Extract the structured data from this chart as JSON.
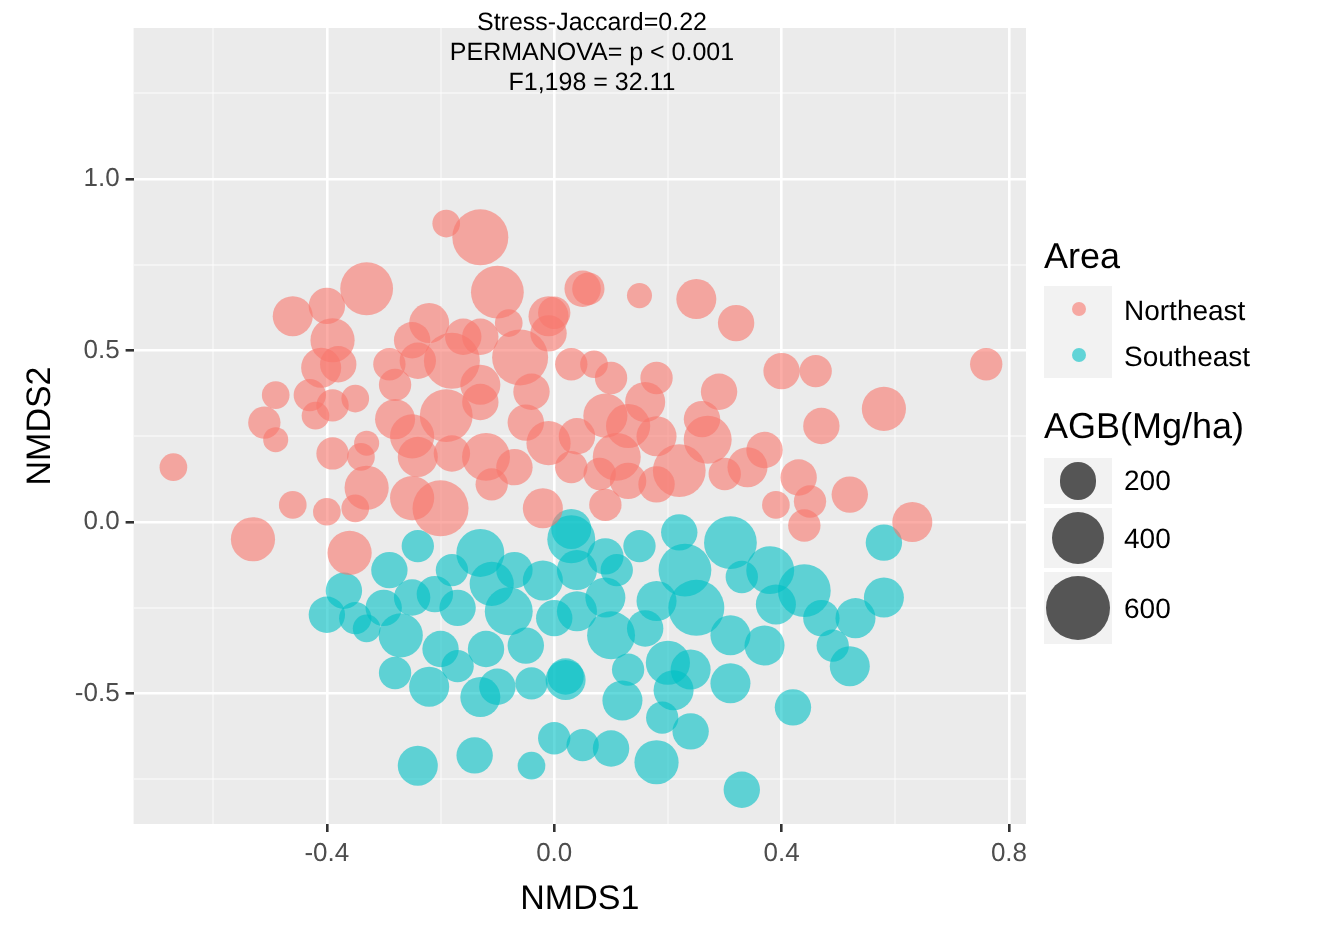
{
  "chart_data": {
    "type": "bubble",
    "xlabel": "NMDS1",
    "ylabel": "NMDS2",
    "legend_title": "Area",
    "legend": "right",
    "grid": true,
    "annotations": [
      "Stress-Jaccard=0.22",
      "PERMANOVA= p < 0.001",
      "F1,198 = 32.11",
      "AGB(Mg/ha)"
    ],
    "size_legend": [
      200,
      400,
      600
    ],
    "xlim": [
      -0.74,
      0.83
    ],
    "ylim": [
      -0.88,
      1.44
    ],
    "xticks": [
      {
        "value": -0.6,
        "label": null
      },
      -0.4,
      {
        "value": -0.2,
        "label": null
      },
      {
        "value": 0,
        "label": "0.0"
      },
      {
        "value": 0.2,
        "label": null
      },
      0.4,
      {
        "value": 0.6,
        "label": null
      },
      0.8
    ],
    "yticks": [
      {
        "value": -0.75,
        "label": null
      },
      -0.5,
      {
        "value": -0.25,
        "label": null
      },
      {
        "value": 0,
        "label": "0.0"
      },
      {
        "value": 0.25,
        "label": null
      },
      0.5,
      {
        "value": 0.75,
        "label": null
      },
      {
        "value": 1,
        "label": "1.0"
      },
      {
        "value": 1.25,
        "label": null
      }
    ],
    "series": [
      {
        "name": "Northeast",
        "color": "#f8766d",
        "x": [
          -0.67,
          -0.19,
          -0.13,
          -0.33,
          -0.46,
          -0.4,
          -0.39,
          -0.1,
          -0.01,
          0.06,
          -0.49,
          -0.51,
          -0.49,
          -0.43,
          -0.42,
          -0.41,
          -0.38,
          -0.39,
          -0.35,
          -0.39,
          -0.34,
          -0.33,
          -0.33,
          -0.46,
          -0.4,
          -0.35,
          -0.29,
          -0.28,
          -0.25,
          -0.22,
          -0.24,
          -0.18,
          -0.16,
          -0.13,
          -0.08,
          -0.06,
          -0.01,
          0.03,
          -0.13,
          -0.13,
          -0.04,
          -0.28,
          -0.25,
          -0.19,
          -0.18,
          -0.24,
          -0.25,
          -0.2,
          -0.12,
          -0.11,
          -0.07,
          -0.05,
          -0.01,
          -0.02,
          0.03,
          0.04,
          0.05,
          0.15,
          0.25,
          0.32,
          0.0,
          0.07,
          0.1,
          0.18,
          0.29,
          0.4,
          0.46,
          0.76,
          0.58,
          0.47,
          0.09,
          0.16,
          0.13,
          0.18,
          0.26,
          0.27,
          0.11,
          0.22,
          0.08,
          0.13,
          0.18,
          0.3,
          0.34,
          0.37,
          0.43,
          0.52,
          0.39,
          0.45,
          0.44,
          0.63,
          0.09,
          -0.53,
          -0.36
        ],
        "values": [
          0.16,
          0.87,
          0.83,
          0.68,
          0.6,
          0.63,
          0.53,
          0.67,
          0.6,
          0.68,
          0.37,
          0.29,
          0.24,
          0.37,
          0.31,
          0.45,
          0.46,
          0.34,
          0.36,
          0.2,
          0.19,
          0.23,
          0.1,
          0.05,
          0.03,
          0.04,
          0.46,
          0.4,
          0.53,
          0.58,
          0.47,
          0.47,
          0.54,
          0.54,
          0.58,
          0.48,
          0.55,
          0.46,
          0.4,
          0.35,
          0.38,
          0.3,
          0.25,
          0.31,
          0.2,
          0.19,
          0.07,
          0.04,
          0.19,
          0.11,
          0.16,
          0.29,
          0.23,
          0.04,
          0.16,
          0.25,
          0.68,
          0.66,
          0.65,
          0.58,
          0.61,
          0.46,
          0.42,
          0.42,
          0.38,
          0.44,
          0.44,
          0.46,
          0.33,
          0.28,
          0.31,
          0.35,
          0.28,
          0.25,
          0.3,
          0.24,
          0.19,
          0.15,
          0.14,
          0.12,
          0.11,
          0.14,
          0.16,
          0.21,
          0.13,
          0.08,
          0.05,
          0.06,
          -0.01,
          0.0,
          0.05,
          -0.05,
          -0.09
        ],
        "sizes": [
          110,
          110,
          450,
          400,
          230,
          190,
          280,
          400,
          230,
          150,
          110,
          150,
          90,
          150,
          110,
          230,
          190,
          150,
          110,
          150,
          110,
          90,
          280,
          110,
          110,
          110,
          150,
          150,
          190,
          230,
          190,
          450,
          190,
          190,
          110,
          450,
          190,
          150,
          230,
          190,
          190,
          230,
          280,
          400,
          190,
          230,
          280,
          450,
          330,
          150,
          190,
          190,
          280,
          230,
          150,
          190,
          190,
          90,
          230,
          190,
          150,
          110,
          150,
          150,
          190,
          190,
          150,
          150,
          280,
          190,
          280,
          230,
          280,
          230,
          190,
          330,
          330,
          400,
          150,
          190,
          190,
          150,
          230,
          190,
          190,
          190,
          110,
          150,
          150,
          230,
          150,
          280,
          280
        ]
      },
      {
        "name": "Southeast",
        "color": "#00bfc4",
        "x": [
          -0.24,
          -0.13,
          -0.29,
          -0.37,
          -0.4,
          -0.35,
          -0.33,
          -0.3,
          -0.27,
          -0.25,
          -0.21,
          -0.18,
          -0.17,
          -0.11,
          -0.08,
          -0.07,
          -0.02,
          0.03,
          0.04,
          -0.2,
          -0.17,
          -0.12,
          -0.05,
          -0.28,
          -0.22,
          -0.13,
          -0.1,
          -0.04,
          0.02,
          -0.24,
          -0.14,
          -0.04,
          0.0,
          0.05,
          0.03,
          0.22,
          0.31,
          0.15,
          0.09,
          0.04,
          0.11,
          0.23,
          0.38,
          0.33,
          0.44,
          0.58,
          0.09,
          0.18,
          0.25,
          0.39,
          0.47,
          0.53,
          0.0,
          0.1,
          0.16,
          0.31,
          0.37,
          0.49,
          0.52,
          0.2,
          0.24,
          0.13,
          0.02,
          0.31,
          0.21,
          0.12,
          0.19,
          0.24,
          0.42,
          0.58,
          0.1,
          0.18,
          0.33
        ],
        "values": [
          -0.07,
          -0.09,
          -0.14,
          -0.2,
          -0.27,
          -0.28,
          -0.31,
          -0.25,
          -0.33,
          -0.22,
          -0.21,
          -0.14,
          -0.25,
          -0.18,
          -0.26,
          -0.14,
          -0.17,
          -0.05,
          -0.26,
          -0.37,
          -0.42,
          -0.37,
          -0.36,
          -0.44,
          -0.48,
          -0.51,
          -0.48,
          -0.47,
          -0.45,
          -0.71,
          -0.68,
          -0.71,
          -0.63,
          -0.65,
          -0.02,
          -0.03,
          -0.06,
          -0.07,
          -0.1,
          -0.14,
          -0.14,
          -0.14,
          -0.14,
          -0.16,
          -0.2,
          -0.22,
          -0.22,
          -0.23,
          -0.25,
          -0.24,
          -0.28,
          -0.28,
          -0.28,
          -0.33,
          -0.31,
          -0.33,
          -0.36,
          -0.36,
          -0.42,
          -0.41,
          -0.43,
          -0.43,
          -0.46,
          -0.47,
          -0.49,
          -0.52,
          -0.57,
          -0.61,
          -0.54,
          -0.06,
          -0.66,
          -0.7,
          -0.78
        ],
        "sizes": [
          150,
          330,
          190,
          190,
          190,
          150,
          110,
          190,
          280,
          190,
          190,
          150,
          190,
          280,
          330,
          190,
          230,
          330,
          230,
          190,
          150,
          190,
          190,
          150,
          230,
          230,
          190,
          150,
          190,
          230,
          190,
          110,
          150,
          150,
          230,
          190,
          400,
          150,
          190,
          230,
          150,
          400,
          330,
          150,
          400,
          230,
          230,
          230,
          450,
          230,
          190,
          230,
          190,
          330,
          190,
          230,
          230,
          150,
          230,
          280,
          230,
          150,
          230,
          230,
          230,
          230,
          150,
          190,
          190,
          190,
          190,
          280,
          190
        ]
      }
    ]
  }
}
